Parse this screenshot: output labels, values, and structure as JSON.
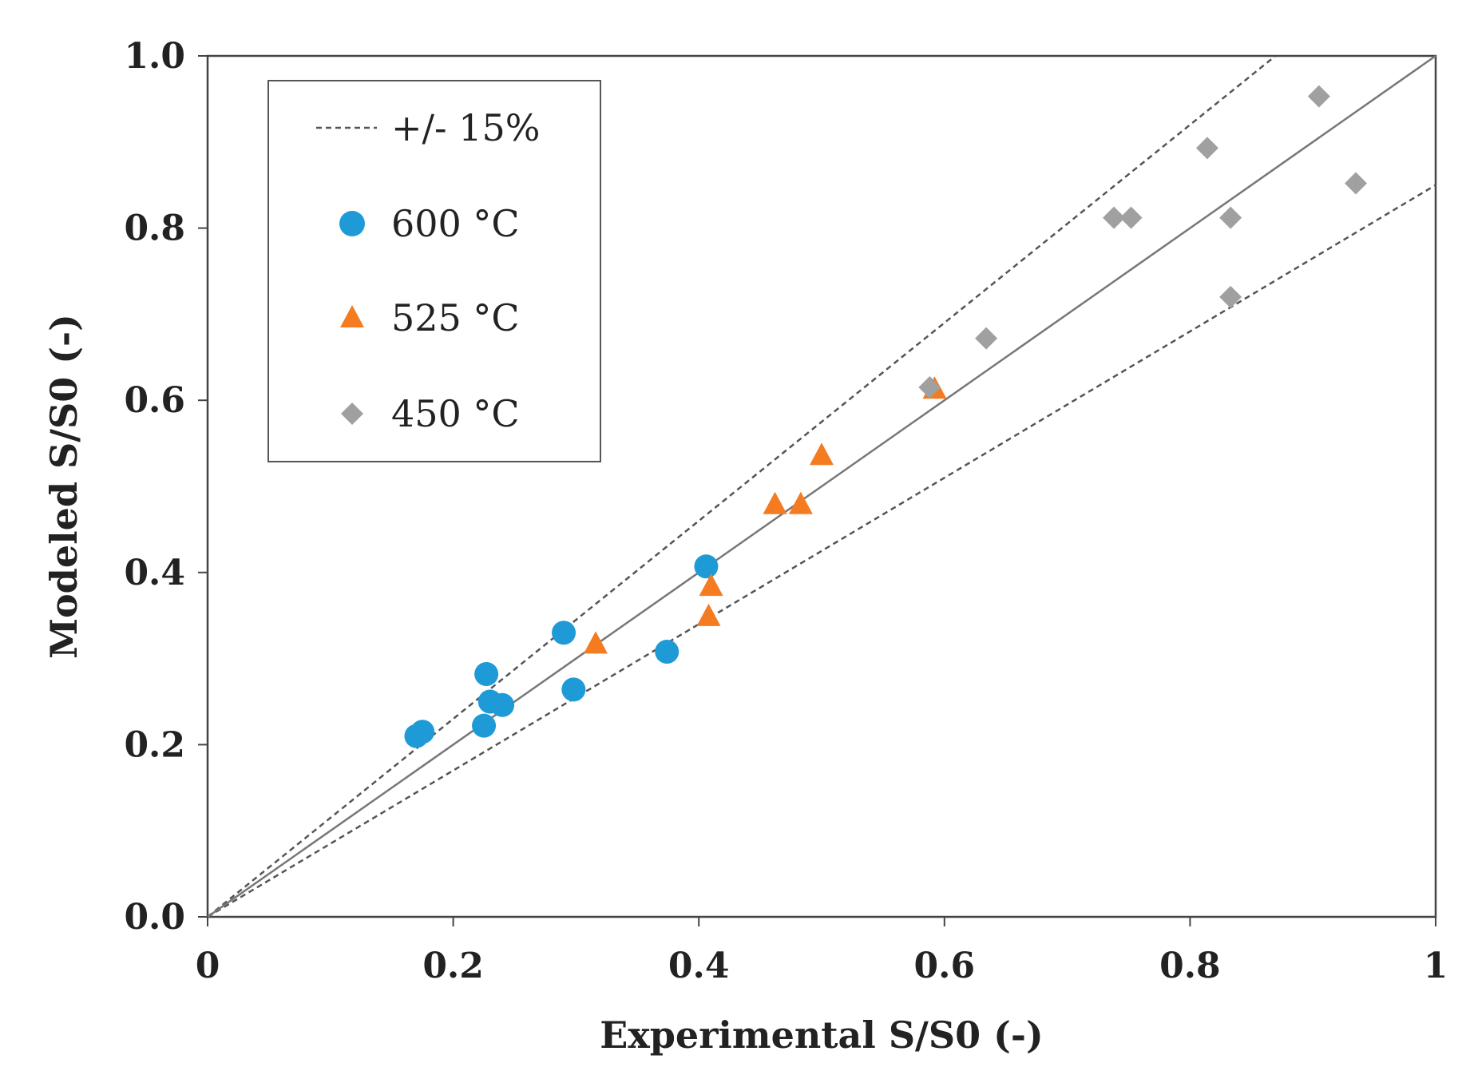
{
  "chart_data": {
    "type": "scatter",
    "xlabel": "Experimental S/S0 (-)",
    "ylabel": "Modeled S/S0 (-)",
    "xlim": [
      0,
      1
    ],
    "ylim": [
      0,
      1
    ],
    "grid": false,
    "legend_position": "top-left",
    "x_ticks": [
      "0",
      "0.2",
      "0.4",
      "0.6",
      "0.8",
      "1"
    ],
    "y_ticks": [
      "0.0",
      "0.2",
      "0.4",
      "0.6",
      "0.8",
      "1.0"
    ],
    "reference_lines": [
      {
        "name": "+/- 15%",
        "style": "dashed",
        "slopes": [
          1.15,
          0.85
        ],
        "color": "#555555"
      },
      {
        "style": "solid",
        "slopes": [
          1.0
        ],
        "color": "#777777"
      }
    ],
    "series": [
      {
        "name": "600 °C",
        "marker": "circle",
        "color": "#1E9BD7",
        "points": [
          {
            "x": 0.17,
            "y": 0.21
          },
          {
            "x": 0.175,
            "y": 0.215
          },
          {
            "x": 0.225,
            "y": 0.222
          },
          {
            "x": 0.227,
            "y": 0.282
          },
          {
            "x": 0.23,
            "y": 0.25
          },
          {
            "x": 0.24,
            "y": 0.246
          },
          {
            "x": 0.29,
            "y": 0.33
          },
          {
            "x": 0.298,
            "y": 0.264
          },
          {
            "x": 0.374,
            "y": 0.308
          },
          {
            "x": 0.406,
            "y": 0.407
          }
        ]
      },
      {
        "name": "525 °C",
        "marker": "triangle",
        "color": "#F47B20",
        "points": [
          {
            "x": 0.316,
            "y": 0.316
          },
          {
            "x": 0.408,
            "y": 0.348
          },
          {
            "x": 0.41,
            "y": 0.383
          },
          {
            "x": 0.462,
            "y": 0.478
          },
          {
            "x": 0.483,
            "y": 0.478
          },
          {
            "x": 0.5,
            "y": 0.535
          },
          {
            "x": 0.592,
            "y": 0.612
          }
        ]
      },
      {
        "name": "450 °C",
        "marker": "diamond",
        "color": "#A0A0A0",
        "points": [
          {
            "x": 0.588,
            "y": 0.615
          },
          {
            "x": 0.634,
            "y": 0.672
          },
          {
            "x": 0.738,
            "y": 0.812
          },
          {
            "x": 0.752,
            "y": 0.812
          },
          {
            "x": 0.814,
            "y": 0.893
          },
          {
            "x": 0.833,
            "y": 0.812
          },
          {
            "x": 0.833,
            "y": 0.72
          },
          {
            "x": 0.905,
            "y": 0.953
          },
          {
            "x": 0.935,
            "y": 0.852
          }
        ]
      }
    ]
  }
}
